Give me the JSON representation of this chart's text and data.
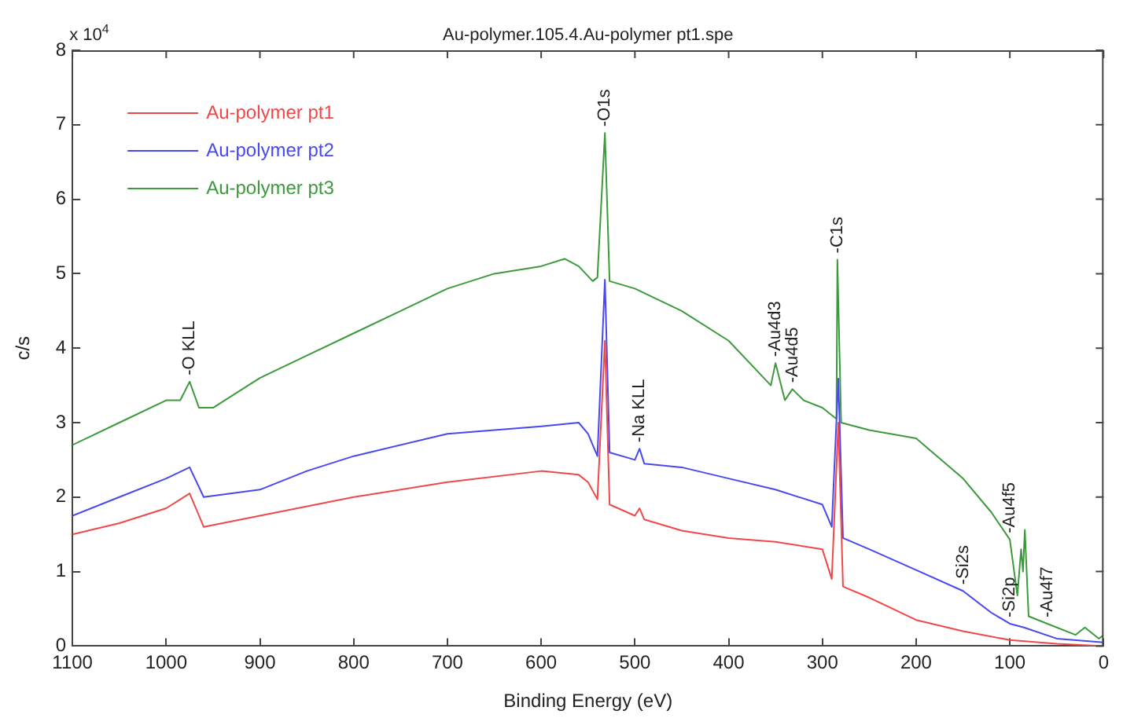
{
  "chart_data": {
    "type": "line",
    "title": "Au-polymer.105.4.Au-polymer pt1.spe",
    "xlabel": "Binding Energy (eV)",
    "ylabel": "c/s",
    "xlim": [
      1100,
      0
    ],
    "xticks": [
      1100,
      1000,
      900,
      800,
      700,
      600,
      500,
      400,
      300,
      200,
      100,
      0
    ],
    "ylim": [
      0,
      8
    ],
    "yticks": [
      0,
      1,
      2,
      3,
      4,
      5,
      6,
      7,
      8
    ],
    "grid": false,
    "legend": "top left",
    "marker": "none",
    "line_style": "solid",
    "series": [
      {
        "name": "Au-polymer pt1",
        "color": "#f04848",
        "x": [
          1100,
          1050,
          1000,
          975,
          960,
          900,
          800,
          700,
          600,
          560,
          550,
          540,
          532,
          527,
          500,
          495,
          490,
          450,
          400,
          350,
          300,
          290,
          283,
          278,
          250,
          200,
          150,
          100,
          50,
          0
        ],
        "values": [
          1.5,
          1.65,
          1.85,
          2.05,
          1.6,
          1.75,
          2.0,
          2.2,
          2.35,
          2.3,
          2.2,
          1.97,
          4.1,
          1.9,
          1.75,
          1.85,
          1.7,
          1.55,
          1.45,
          1.4,
          1.3,
          0.9,
          3.0,
          0.8,
          0.65,
          0.35,
          0.2,
          0.08,
          0.03,
          0.0
        ]
      },
      {
        "name": "Au-polymer pt2",
        "color": "#4848f0",
        "x": [
          1100,
          1050,
          1000,
          975,
          960,
          900,
          850,
          800,
          700,
          650,
          600,
          560,
          550,
          540,
          532,
          527,
          500,
          495,
          490,
          450,
          400,
          350,
          300,
          290,
          283,
          278,
          250,
          200,
          150,
          120,
          100,
          85,
          50,
          0
        ],
        "values": [
          1.75,
          2.0,
          2.25,
          2.4,
          2.0,
          2.1,
          2.35,
          2.55,
          2.85,
          2.9,
          2.95,
          3.0,
          2.85,
          2.55,
          4.92,
          2.6,
          2.5,
          2.65,
          2.45,
          2.4,
          2.25,
          2.1,
          1.9,
          1.6,
          3.59,
          1.45,
          1.3,
          1.02,
          0.74,
          0.45,
          0.3,
          0.25,
          0.1,
          0.05
        ]
      },
      {
        "name": "Au-polymer pt3",
        "color": "#3c9a3c",
        "x": [
          1100,
          1050,
          1000,
          985,
          975,
          965,
          950,
          900,
          850,
          800,
          750,
          700,
          650,
          600,
          575,
          560,
          545,
          540,
          532,
          527,
          500,
          450,
          400,
          370,
          355,
          350,
          340,
          332,
          320,
          300,
          290,
          285,
          284,
          280,
          250,
          200,
          150,
          120,
          100,
          92,
          88,
          86,
          84,
          80,
          60,
          30,
          20,
          5,
          0
        ],
        "values": [
          2.7,
          3.0,
          3.3,
          3.3,
          3.55,
          3.2,
          3.2,
          3.6,
          3.9,
          4.2,
          4.5,
          4.8,
          5.0,
          5.1,
          5.2,
          5.1,
          4.9,
          4.95,
          6.89,
          4.9,
          4.8,
          4.5,
          4.1,
          3.7,
          3.5,
          3.8,
          3.3,
          3.45,
          3.3,
          3.2,
          3.1,
          3.05,
          5.19,
          3.0,
          2.9,
          2.79,
          2.25,
          1.8,
          1.43,
          0.68,
          1.3,
          1.0,
          1.56,
          0.4,
          0.3,
          0.15,
          0.25,
          0.1,
          0.15
        ]
      }
    ],
    "annotations": [
      "x 10$^{4}$",
      {
        "text": "-O KLL",
        "x": 975,
        "y": 3.55
      },
      {
        "text": "-O1s",
        "x": 532,
        "y": 6.89
      },
      {
        "text": "-Na KLL",
        "x": 495,
        "y": 2.65
      },
      {
        "text": "-Au4d3",
        "x": 350,
        "y": 3.8
      },
      {
        "text": "-Au4d5",
        "x": 332,
        "y": 3.45
      },
      {
        "text": "-C1s",
        "x": 284,
        "y": 5.19
      },
      {
        "text": "-Si2s",
        "x": 150,
        "y": 0.74
      },
      {
        "text": "-Si2p",
        "x": 100,
        "y": 0.3
      },
      {
        "text": "-Au4f5",
        "x": 100,
        "y": 1.43
      },
      {
        "text": "-Au4f7",
        "x": 60,
        "y": 0.3
      }
    ]
  }
}
